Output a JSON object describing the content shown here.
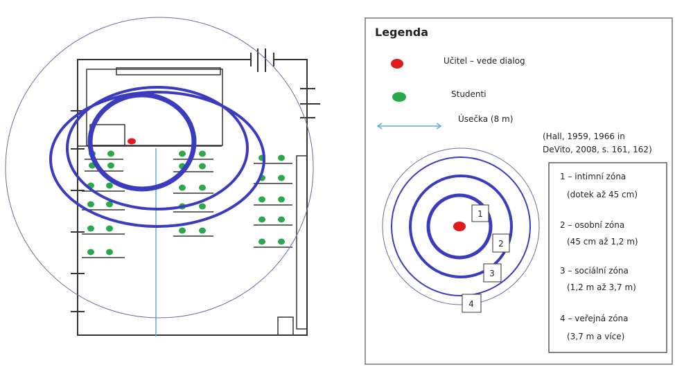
{
  "legend": {
    "title": "Legenda",
    "teacher_label": "Učitel – vede dialog",
    "students_label": "Studenti",
    "segment_label": "Úsečka (8 m)",
    "citation_line1": "(Hall, 1959, 1966 in",
    "citation_line2": "DeVito, 2008, s. 161, 162)",
    "zone_markers": [
      "1",
      "2",
      "3",
      "4"
    ],
    "zones": [
      {
        "name": "1 – intimní zóna",
        "range": "(dotek až 45 cm)"
      },
      {
        "name": "2 – osobní zóna",
        "range": "(45 cm až 1,2 m)"
      },
      {
        "name": "3 – sociální zóna",
        "range": "(1,2 m až 3,7 m)"
      },
      {
        "name": "4 – veřejná zóna",
        "range": "(3,7 m  a více)"
      }
    ]
  },
  "colors": {
    "zone_ring": "#3b3bbf",
    "outer_ring": "#6a6aa8",
    "teacher": "#e01b1b",
    "student": "#2aa84a",
    "segment": "#5aaed8",
    "wall": "#333333"
  },
  "icons": {
    "teacher": "red-dot",
    "student": "green-dot",
    "segment": "double-arrow-line"
  }
}
